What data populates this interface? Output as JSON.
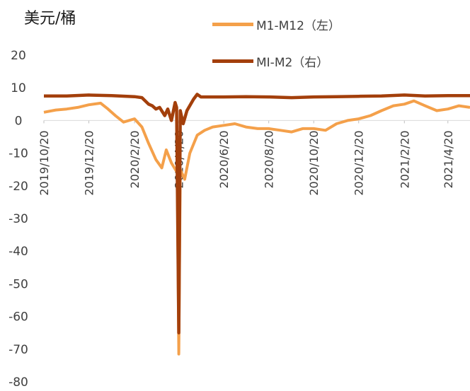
{
  "header": {
    "unit": "美元/桶"
  },
  "colors": {
    "m1_m12": "#F4A04A",
    "m1_m2": "#A33F0B"
  },
  "chart_data": {
    "type": "line",
    "ylim": [
      -80,
      20
    ],
    "yticks": [
      20,
      10,
      0,
      -10,
      -20,
      -30,
      -40,
      -50,
      -60,
      -70,
      -80
    ],
    "grid": false,
    "x_ticks": [
      "2019/10/20",
      "2019/12/20",
      "2020/2/20",
      "2020/4/20",
      "2020/6/20",
      "2020/8/20",
      "2020/10/20",
      "2020/12/20",
      "2021/2/20",
      "2021/4/20"
    ],
    "x_range": [
      "2019/10/20",
      "2021/5/20"
    ],
    "series": [
      {
        "name": "M1-M12（左）",
        "axis": "left",
        "points": [
          [
            "2019/10/20",
            2.5
          ],
          [
            "2019/11/5",
            3.2
          ],
          [
            "2019/11/20",
            3.5
          ],
          [
            "2019/12/5",
            4.0
          ],
          [
            "2019/12/20",
            4.8
          ],
          [
            "2020/1/5",
            5.3
          ],
          [
            "2020/1/15",
            3.5
          ],
          [
            "2020/1/25",
            1.5
          ],
          [
            "2020/2/5",
            -0.5
          ],
          [
            "2020/2/20",
            0.5
          ],
          [
            "2020/3/1",
            -2.0
          ],
          [
            "2020/3/10",
            -7.0
          ],
          [
            "2020/3/20",
            -12.0
          ],
          [
            "2020/3/28",
            -14.5
          ],
          [
            "2020/4/3",
            -9.0
          ],
          [
            "2020/4/10",
            -13.0
          ],
          [
            "2020/4/18",
            -16.0
          ],
          [
            "2020/4/20",
            -71.5
          ],
          [
            "2020/4/22",
            -15.0
          ],
          [
            "2020/4/28",
            -18.0
          ],
          [
            "2020/5/5",
            -10.0
          ],
          [
            "2020/5/15",
            -4.5
          ],
          [
            "2020/5/25",
            -3.0
          ],
          [
            "2020/6/5",
            -2.0
          ],
          [
            "2020/6/20",
            -1.5
          ],
          [
            "2020/7/5",
            -1.0
          ],
          [
            "2020/7/20",
            -2.0
          ],
          [
            "2020/8/5",
            -2.5
          ],
          [
            "2020/8/20",
            -2.5
          ],
          [
            "2020/9/5",
            -3.0
          ],
          [
            "2020/9/20",
            -3.5
          ],
          [
            "2020/10/5",
            -2.5
          ],
          [
            "2020/10/20",
            -2.5
          ],
          [
            "2020/11/5",
            -3.0
          ],
          [
            "2020/11/20",
            -1.0
          ],
          [
            "2020/12/5",
            0.0
          ],
          [
            "2020/12/20",
            0.5
          ],
          [
            "2021/1/5",
            1.5
          ],
          [
            "2021/1/20",
            3.0
          ],
          [
            "2021/2/5",
            4.5
          ],
          [
            "2021/2/20",
            5.0
          ],
          [
            "2021/3/5",
            6.0
          ],
          [
            "2021/3/20",
            4.5
          ],
          [
            "2021/4/5",
            3.0
          ],
          [
            "2021/4/20",
            3.5
          ],
          [
            "2021/5/5",
            4.5
          ],
          [
            "2021/5/20",
            4.0
          ]
        ]
      },
      {
        "name": "MI-M2（右）",
        "axis": "right",
        "points": [
          [
            "2019/10/20",
            7.5
          ],
          [
            "2019/11/20",
            7.5
          ],
          [
            "2019/12/20",
            7.8
          ],
          [
            "2020/1/20",
            7.6
          ],
          [
            "2020/2/20",
            7.3
          ],
          [
            "2020/3/1",
            7.0
          ],
          [
            "2020/3/10",
            5.0
          ],
          [
            "2020/3/15",
            4.5
          ],
          [
            "2020/3/20",
            3.5
          ],
          [
            "2020/3/25",
            4.0
          ],
          [
            "2020/4/1",
            1.5
          ],
          [
            "2020/4/5",
            3.5
          ],
          [
            "2020/4/10",
            0.0
          ],
          [
            "2020/4/15",
            5.5
          ],
          [
            "2020/4/17",
            4.0
          ],
          [
            "2020/4/20",
            -65.0
          ],
          [
            "2020/4/22",
            3.0
          ],
          [
            "2020/4/26",
            -1.0
          ],
          [
            "2020/5/1",
            3.0
          ],
          [
            "2020/5/10",
            6.5
          ],
          [
            "2020/5/15",
            8.0
          ],
          [
            "2020/5/20",
            7.2
          ],
          [
            "2020/6/20",
            7.2
          ],
          [
            "2020/7/20",
            7.3
          ],
          [
            "2020/8/20",
            7.2
          ],
          [
            "2020/9/20",
            7.0
          ],
          [
            "2020/10/20",
            7.2
          ],
          [
            "2020/11/20",
            7.3
          ],
          [
            "2020/12/20",
            7.4
          ],
          [
            "2021/1/20",
            7.5
          ],
          [
            "2021/2/20",
            7.8
          ],
          [
            "2021/3/20",
            7.5
          ],
          [
            "2021/4/20",
            7.6
          ],
          [
            "2021/5/20",
            7.6
          ]
        ]
      }
    ]
  }
}
